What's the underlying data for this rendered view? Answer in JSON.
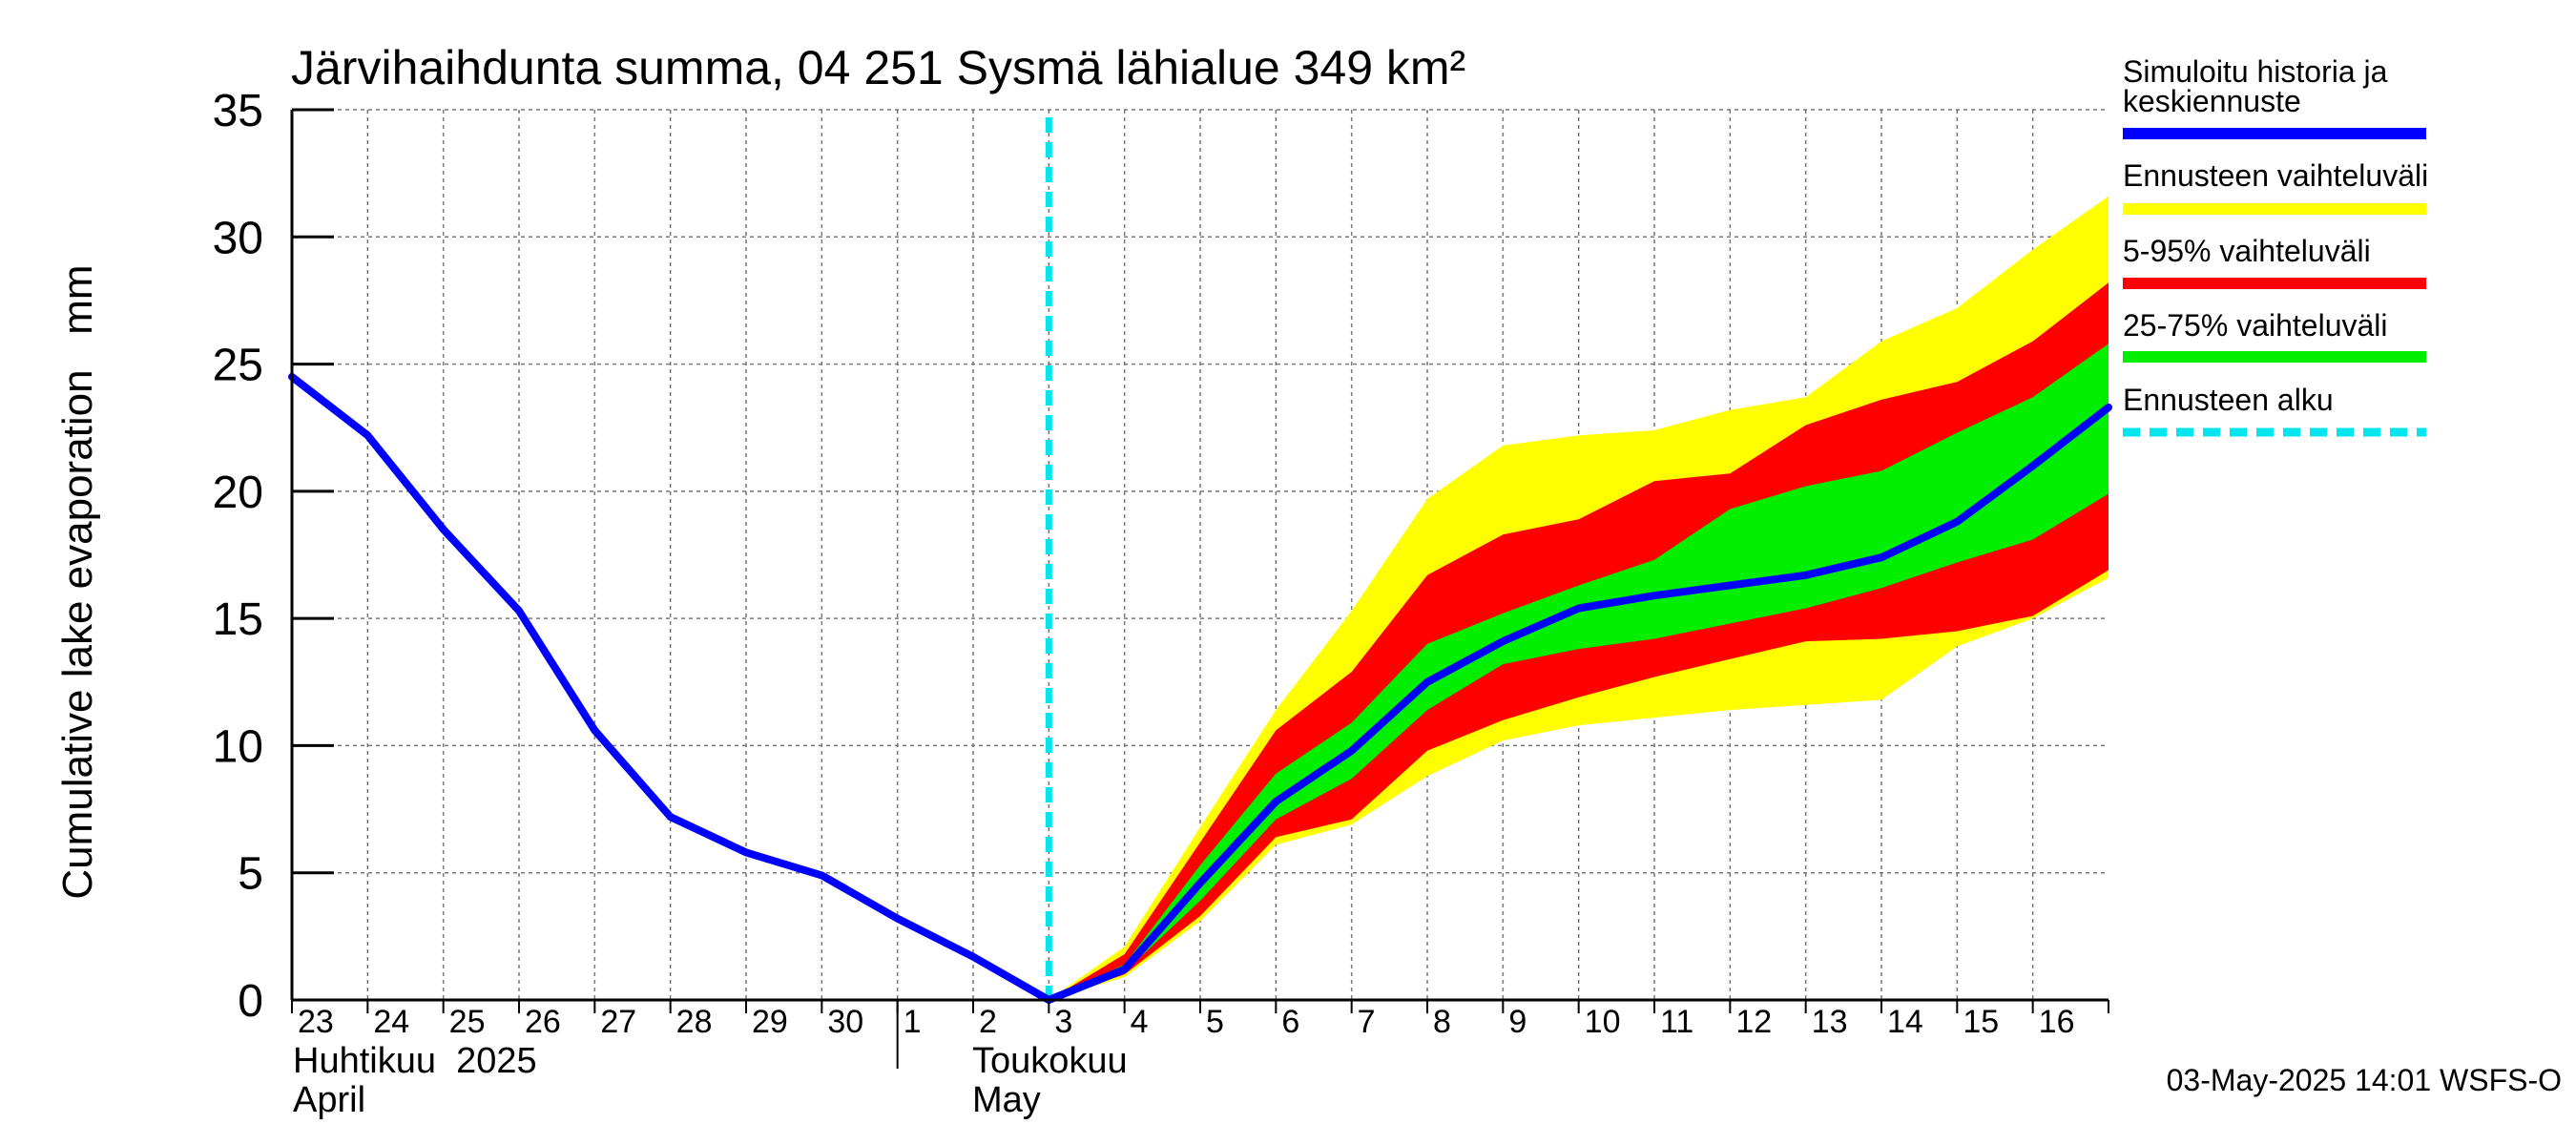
{
  "chart_data": {
    "type": "area",
    "title": "Järvihaihdunta summa, 04 251 Sysmä lähialue 349 km²",
    "ylabel": "Cumulative lake evaporation   mm",
    "ylim": [
      0,
      35
    ],
    "yticks": [
      0,
      5,
      10,
      15,
      20,
      25,
      30,
      35
    ],
    "xlim": [
      "2025-04-23",
      "2025-05-17"
    ],
    "x_tick_labels": [
      "23",
      "24",
      "25",
      "26",
      "27",
      "28",
      "29",
      "30",
      "1",
      "2",
      "3",
      "4",
      "5",
      "6",
      "7",
      "8",
      "9",
      "10",
      "11",
      "12",
      "13",
      "14",
      "15",
      "16"
    ],
    "month_labels": {
      "april_fi": "Huhtikuu  2025",
      "april_en": "April",
      "may_fi": "Toukokuu",
      "may_en": "May"
    },
    "grid": true,
    "legend_position": "right",
    "forecast_start": "2025-05-03",
    "dates": [
      "2025-04-23",
      "2025-04-24",
      "2025-04-25",
      "2025-04-26",
      "2025-04-27",
      "2025-04-28",
      "2025-04-29",
      "2025-04-30",
      "2025-05-01",
      "2025-05-02",
      "2025-05-03",
      "2025-05-04",
      "2025-05-05",
      "2025-05-06",
      "2025-05-07",
      "2025-05-08",
      "2025-05-09",
      "2025-05-10",
      "2025-05-11",
      "2025-05-12",
      "2025-05-13",
      "2025-05-14",
      "2025-05-15",
      "2025-05-16",
      "2025-05-17"
    ],
    "series": [
      {
        "name": "Simuloitu historia ja keskiennuste",
        "color": "#0000ff",
        "values": [
          24.5,
          22.2,
          18.5,
          15.3,
          10.6,
          7.2,
          5.8,
          4.9,
          3.2,
          1.7,
          0.0,
          1.2,
          4.6,
          7.8,
          9.8,
          12.5,
          14.1,
          15.4,
          15.9,
          16.3,
          16.7,
          17.4,
          18.8,
          21.0,
          23.3
        ]
      }
    ],
    "bands": [
      {
        "name": "Ennusteen vaihteluväli",
        "color": "#ffff00",
        "start": "2025-05-03",
        "lower": [
          0.0,
          0.9,
          3.1,
          6.1,
          6.9,
          8.8,
          10.2,
          10.8,
          11.1,
          11.4,
          11.6,
          11.8,
          13.9,
          15.0,
          16.6
        ],
        "upper": [
          0.0,
          2.1,
          6.8,
          11.4,
          15.3,
          19.7,
          21.8,
          22.2,
          22.4,
          23.2,
          23.7,
          25.9,
          27.2,
          29.5,
          31.6
        ]
      },
      {
        "name": "5-95% vaihteluväli",
        "color": "#ff0000",
        "start": "2025-05-03",
        "lower": [
          0.0,
          1.0,
          3.3,
          6.4,
          7.1,
          9.8,
          11.0,
          11.9,
          12.7,
          13.4,
          14.1,
          14.2,
          14.5,
          15.1,
          16.9
        ],
        "upper": [
          0.0,
          1.8,
          6.2,
          10.6,
          12.9,
          16.7,
          18.3,
          18.9,
          20.4,
          20.7,
          22.6,
          23.6,
          24.3,
          25.9,
          28.2
        ]
      },
      {
        "name": "25-75% vaihteluväli",
        "color": "#00ee00",
        "start": "2025-05-03",
        "lower": [
          0.0,
          1.1,
          3.9,
          7.1,
          8.7,
          11.4,
          13.2,
          13.8,
          14.2,
          14.8,
          15.4,
          16.2,
          17.2,
          18.1,
          19.9
        ],
        "upper": [
          0.0,
          1.4,
          5.3,
          8.9,
          10.9,
          14.0,
          15.2,
          16.3,
          17.3,
          19.3,
          20.2,
          20.8,
          22.3,
          23.7,
          25.8
        ]
      }
    ],
    "forecast_line": {
      "name": "Ennusteen alku",
      "color": "#00e5ee"
    }
  },
  "timestamp": "03-May-2025 14:01 WSFS-O"
}
